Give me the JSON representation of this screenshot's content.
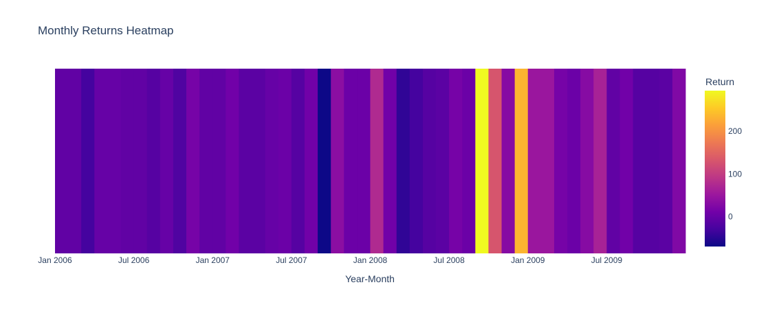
{
  "chart_data": {
    "type": "heatmap",
    "title": "Monthly Returns Heatmap",
    "xlabel": "Year-Month",
    "ylabel": "",
    "colorbar": {
      "title": "Return",
      "range": [
        -70,
        295
      ],
      "ticks": [
        0,
        100,
        200
      ]
    },
    "x_ticks": [
      "Jan 2006",
      "Jul 2006",
      "Jan 2007",
      "Jul 2007",
      "Jan 2008",
      "Jul 2008",
      "Jan 2009",
      "Jul 2009"
    ],
    "x_start": "Jan 2006",
    "months": [
      "Jan 2006",
      "Feb 2006",
      "Mar 2006",
      "Apr 2006",
      "May 2006",
      "Jun 2006",
      "Jul 2006",
      "Aug 2006",
      "Sep 2006",
      "Oct 2006",
      "Nov 2006",
      "Dec 2006",
      "Jan 2007",
      "Feb 2007",
      "Mar 2007",
      "Apr 2007",
      "May 2007",
      "Jun 2007",
      "Jul 2007",
      "Aug 2007",
      "Sep 2007",
      "Oct 2007",
      "Nov 2007",
      "Dec 2007",
      "Jan 2008",
      "Feb 2008",
      "Mar 2008",
      "Apr 2008",
      "May 2008",
      "Jun 2008",
      "Jul 2008",
      "Aug 2008",
      "Sep 2008",
      "Oct 2008",
      "Nov 2008",
      "Dec 2008",
      "Jan 2009",
      "Feb 2009",
      "Mar 2009",
      "Apr 2009",
      "May 2009",
      "Jun 2009",
      "Jul 2009",
      "Aug 2009",
      "Sep 2009",
      "Oct 2009",
      "Nov 2009",
      "Dec 2009"
    ],
    "values": [
      -5,
      -5,
      -30,
      0,
      0,
      -5,
      -5,
      -15,
      0,
      -20,
      15,
      -5,
      -5,
      10,
      -10,
      -10,
      0,
      5,
      -15,
      10,
      -70,
      35,
      5,
      5,
      75,
      10,
      -45,
      -30,
      -15,
      -10,
      15,
      5,
      295,
      130,
      30,
      235,
      50,
      50,
      15,
      5,
      30,
      65,
      -5,
      10,
      -15,
      -15,
      -10,
      25
    ]
  }
}
